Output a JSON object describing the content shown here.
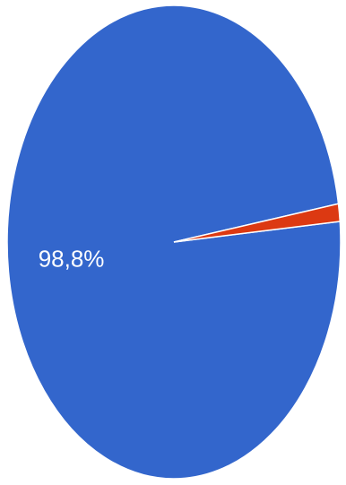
{
  "chart_data": {
    "type": "pie",
    "slices": [
      {
        "value": 98.8,
        "label": "98,8%",
        "color": "#3366cc"
      },
      {
        "value": 1.2,
        "label": "",
        "color": "#dc3912"
      }
    ],
    "start_angle_deg": -5,
    "legend": "none"
  }
}
